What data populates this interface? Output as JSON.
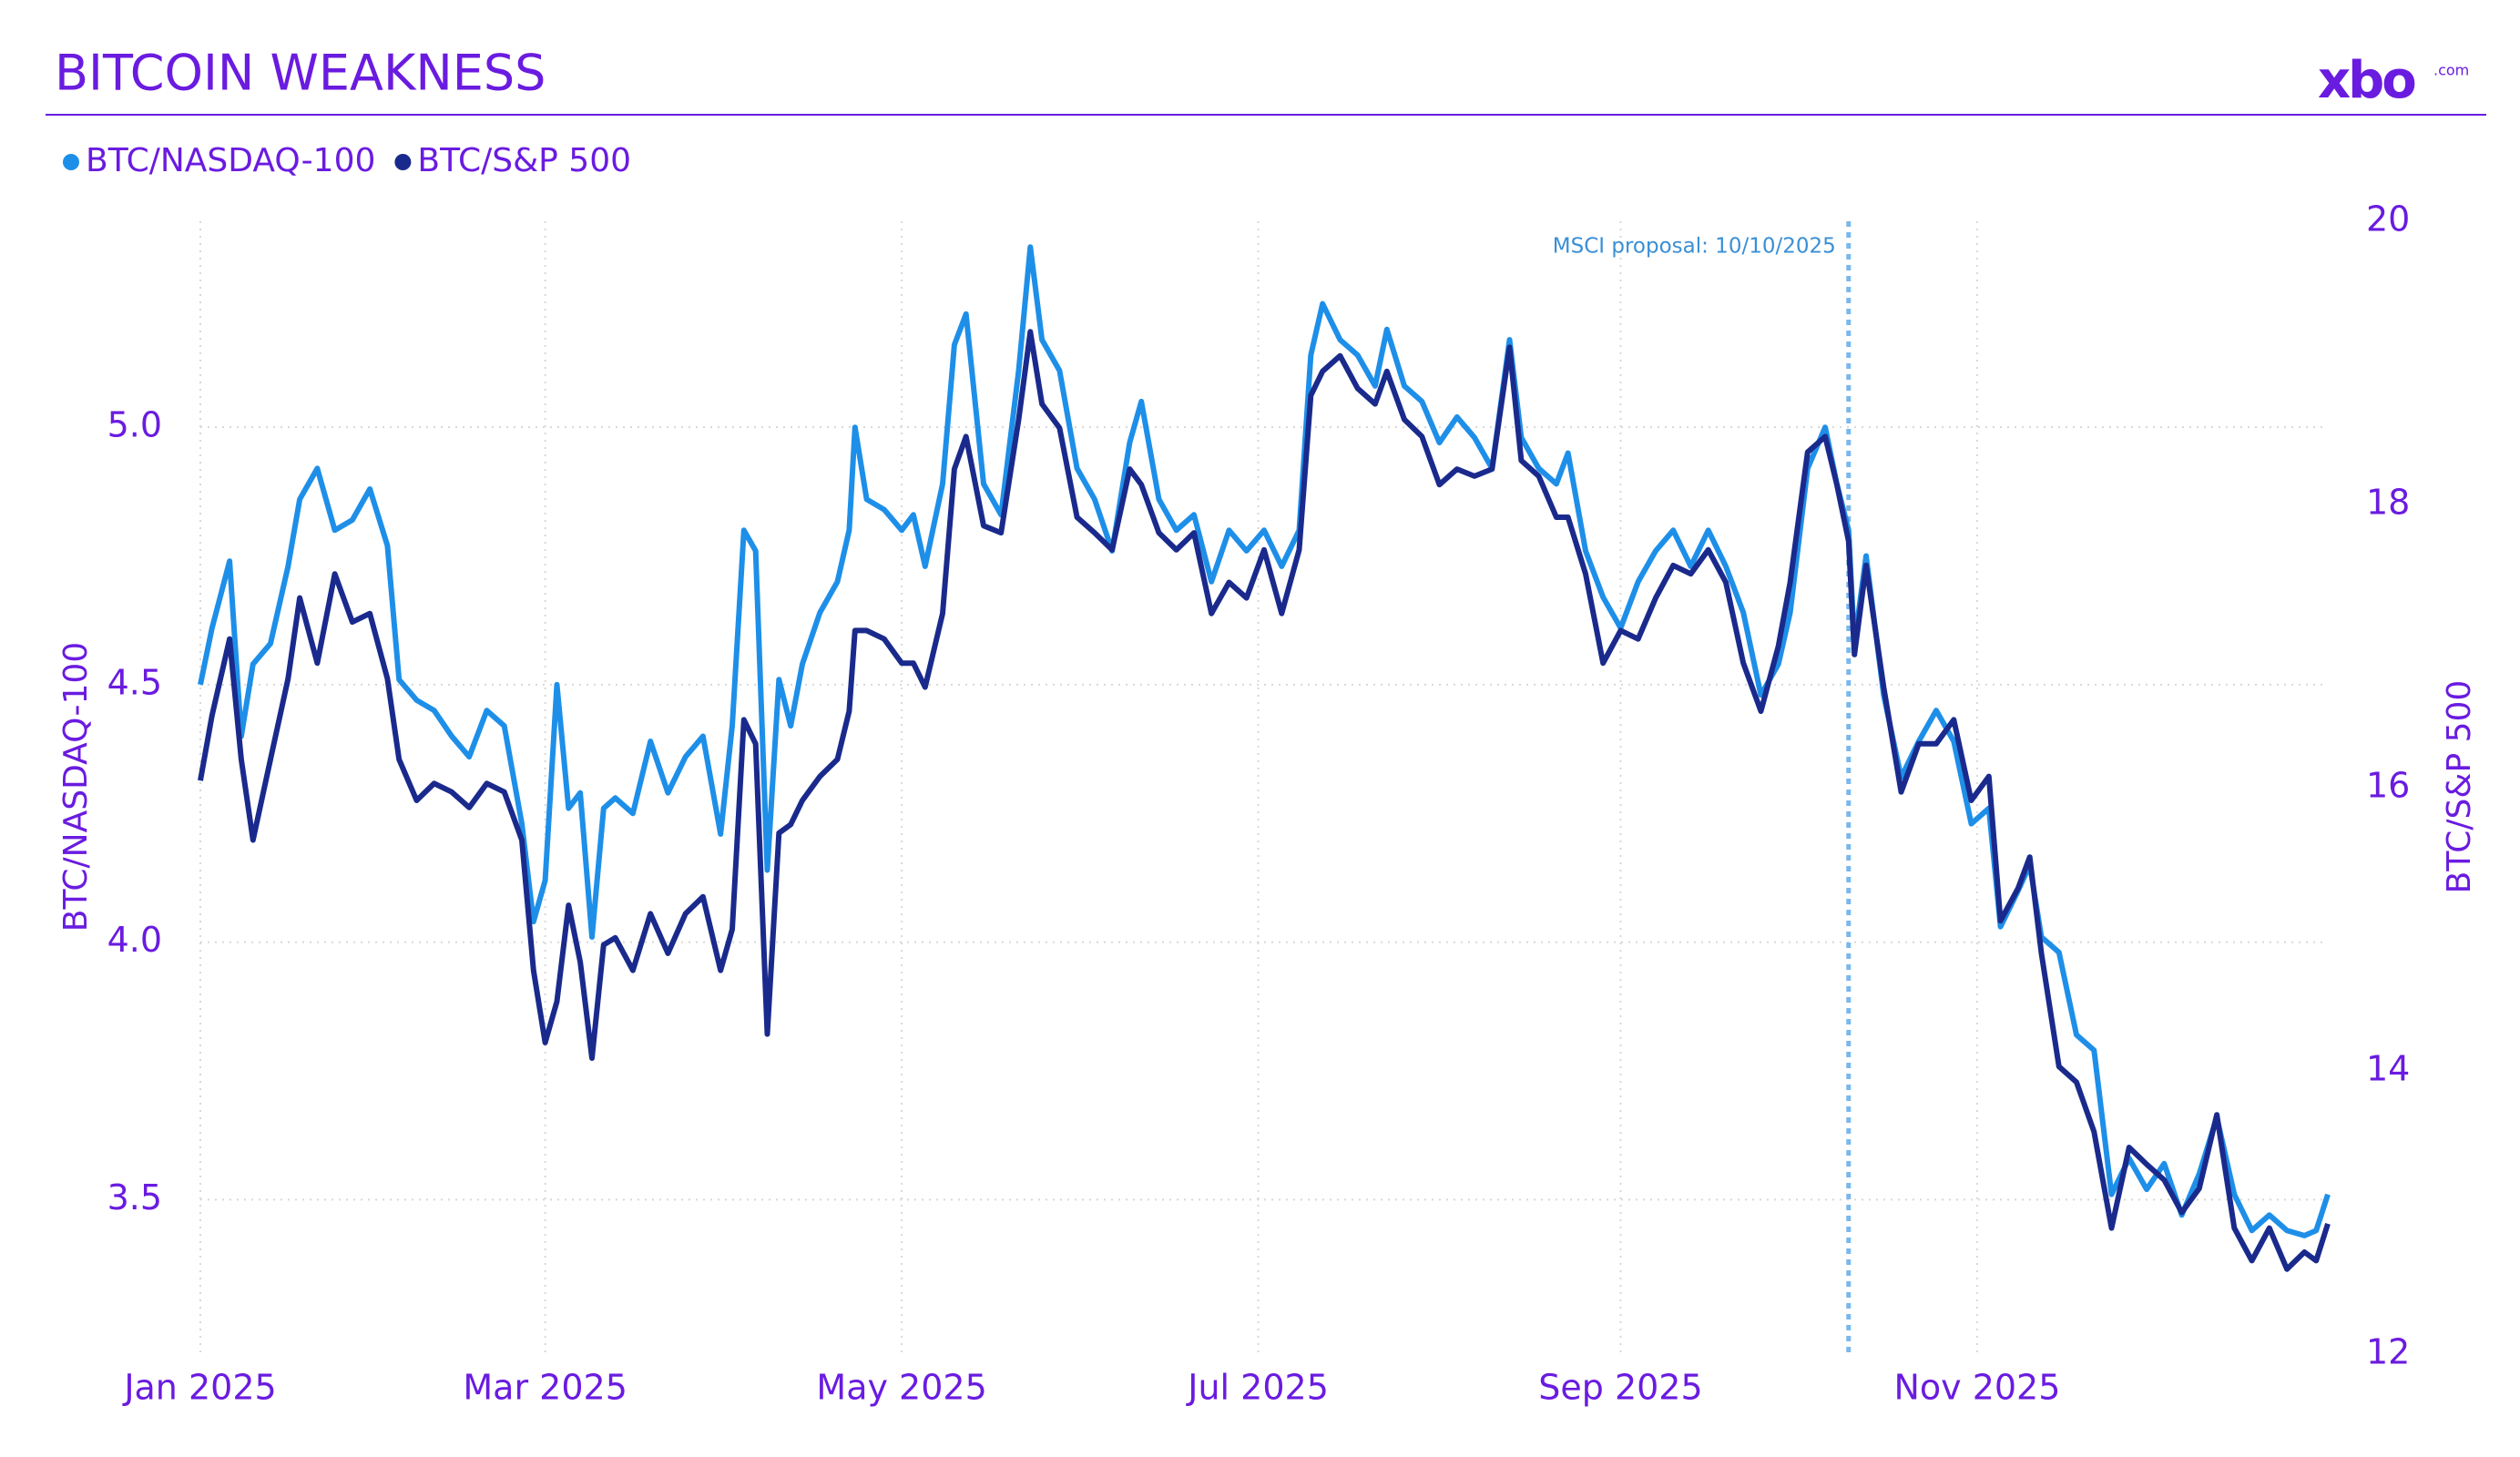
{
  "chart_data": {
    "type": "line",
    "title": "BITCOIN WEAKNESS",
    "brand": "xbo",
    "brand_suffix": ".com",
    "x": [
      0,
      2,
      5,
      7,
      9,
      12,
      15,
      17,
      20,
      23,
      26,
      29,
      32,
      34,
      37,
      40,
      43,
      46,
      49,
      52,
      55,
      57,
      59,
      61,
      63,
      65,
      67,
      69,
      71,
      74,
      77,
      80,
      83,
      86,
      89,
      91,
      93,
      95,
      97,
      99,
      101,
      103,
      106,
      109,
      111,
      112,
      114,
      117,
      120,
      122,
      124,
      127,
      129,
      131,
      134,
      137,
      140,
      142,
      144,
      147,
      150,
      153,
      156,
      159,
      161,
      164,
      167,
      170,
      173,
      176,
      179,
      182,
      185,
      188,
      190,
      192,
      195,
      198,
      201,
      203,
      206,
      209,
      212,
      215,
      218,
      221,
      224,
      226,
      229,
      232,
      234,
      237,
      240,
      243,
      246,
      249,
      252,
      255,
      258,
      261,
      264,
      267,
      270,
      272,
      275,
      278,
      280,
      282,
      283,
      285,
      288,
      291,
      294,
      297,
      300,
      303,
      306,
      308,
      311,
      313,
      315,
      318,
      321,
      324,
      327,
      330,
      333,
      336,
      339,
      342,
      345,
      348,
      351,
      354,
      357,
      360,
      362,
      364
    ],
    "xlim": [
      0,
      364
    ],
    "xticks": [
      {
        "value": 0,
        "label": "Jan 2025"
      },
      {
        "value": 59,
        "label": "Mar 2025"
      },
      {
        "value": 120,
        "label": "May 2025"
      },
      {
        "value": 181,
        "label": "Jul 2025"
      },
      {
        "value": 243,
        "label": "Sep 2025"
      },
      {
        "value": 304,
        "label": "Nov 2025"
      }
    ],
    "ylabel": "BTC/NASDAQ-100",
    "y2label": "BTC/S&P 500",
    "ylim": [
      3.2,
      5.4
    ],
    "yticks": [
      3.5,
      {
        "value": 4,
        "label": "4.0"
      },
      4.5,
      {
        "value": 5,
        "label": "5.0"
      }
    ],
    "y2lim": [
      12,
      20
    ],
    "y2ticks": [
      12,
      14,
      16,
      18,
      20
    ],
    "grid": true,
    "legend": "top-left",
    "series": [
      {
        "name": "BTC/NASDAQ-100",
        "color": "#1e8fe8",
        "axis": "y",
        "values": [
          4.5,
          4.61,
          4.74,
          4.4,
          4.54,
          4.58,
          4.73,
          4.86,
          4.92,
          4.8,
          4.82,
          4.88,
          4.77,
          4.51,
          4.47,
          4.45,
          4.4,
          4.36,
          4.45,
          4.42,
          4.23,
          4.04,
          4.12,
          4.5,
          4.26,
          4.29,
          4.01,
          4.26,
          4.28,
          4.25,
          4.39,
          4.29,
          4.36,
          4.4,
          4.21,
          4.42,
          4.8,
          4.76,
          4.14,
          4.51,
          4.42,
          4.54,
          4.64,
          4.7,
          4.8,
          5.0,
          4.86,
          4.84,
          4.8,
          4.83,
          4.73,
          4.89,
          5.16,
          5.22,
          4.89,
          4.83,
          5.11,
          5.35,
          5.17,
          5.11,
          4.92,
          4.86,
          4.76,
          4.97,
          5.05,
          4.86,
          4.8,
          4.83,
          4.7,
          4.8,
          4.76,
          4.8,
          4.73,
          4.8,
          5.14,
          5.24,
          5.17,
          5.14,
          5.08,
          5.19,
          5.08,
          5.05,
          4.97,
          5.02,
          4.98,
          4.92,
          5.17,
          4.98,
          4.92,
          4.89,
          4.95,
          4.76,
          4.67,
          4.61,
          4.7,
          4.76,
          4.8,
          4.73,
          4.8,
          4.73,
          4.64,
          4.48,
          4.54,
          4.64,
          4.92,
          5.0,
          4.89,
          4.8,
          4.58,
          4.75,
          4.48,
          4.32,
          4.39,
          4.45,
          4.39,
          4.23,
          4.26,
          4.03,
          4.1,
          4.15,
          4.01,
          3.98,
          3.82,
          3.79,
          3.51,
          3.58,
          3.52,
          3.57,
          3.47,
          3.55,
          3.66,
          3.51,
          3.44,
          3.47,
          3.44,
          3.43,
          3.44,
          3.51
        ]
      },
      {
        "name": "BTC/S&P 500",
        "color": "#1a2a8c",
        "axis": "y2",
        "values": [
          16.05,
          16.51,
          17.05,
          16.2,
          15.63,
          16.2,
          16.77,
          17.34,
          16.88,
          17.51,
          17.17,
          17.23,
          16.77,
          16.2,
          15.91,
          16.03,
          15.97,
          15.86,
          16.03,
          15.97,
          15.63,
          14.71,
          14.2,
          14.49,
          15.17,
          14.77,
          14.09,
          14.89,
          14.94,
          14.71,
          15.11,
          14.83,
          15.11,
          15.23,
          14.71,
          15.0,
          16.48,
          16.31,
          14.26,
          15.68,
          15.74,
          15.91,
          16.08,
          16.2,
          16.54,
          17.11,
          17.11,
          17.05,
          16.88,
          16.88,
          16.71,
          17.23,
          18.25,
          18.48,
          17.85,
          17.8,
          18.6,
          19.22,
          18.71,
          18.54,
          17.91,
          17.8,
          17.68,
          18.25,
          18.14,
          17.8,
          17.68,
          17.8,
          17.23,
          17.45,
          17.34,
          17.68,
          17.23,
          17.68,
          18.77,
          18.94,
          19.05,
          18.82,
          18.71,
          18.94,
          18.6,
          18.48,
          18.14,
          18.25,
          18.2,
          18.25,
          19.11,
          18.31,
          18.2,
          17.91,
          17.91,
          17.51,
          16.88,
          17.11,
          17.05,
          17.34,
          17.57,
          17.51,
          17.68,
          17.45,
          16.88,
          16.54,
          17.0,
          17.45,
          18.37,
          18.48,
          18.14,
          17.74,
          16.94,
          17.57,
          16.71,
          15.97,
          16.31,
          16.31,
          16.48,
          15.91,
          16.08,
          15.06,
          15.29,
          15.51,
          14.83,
          14.03,
          13.92,
          13.57,
          12.89,
          13.46,
          13.34,
          13.23,
          13.0,
          13.17,
          13.69,
          12.89,
          12.66,
          12.89,
          12.6,
          12.72,
          12.66,
          12.92
        ]
      }
    ],
    "annotations": [
      {
        "text": "MSCI proposal: 10/10/2025",
        "x": 282
      }
    ]
  }
}
